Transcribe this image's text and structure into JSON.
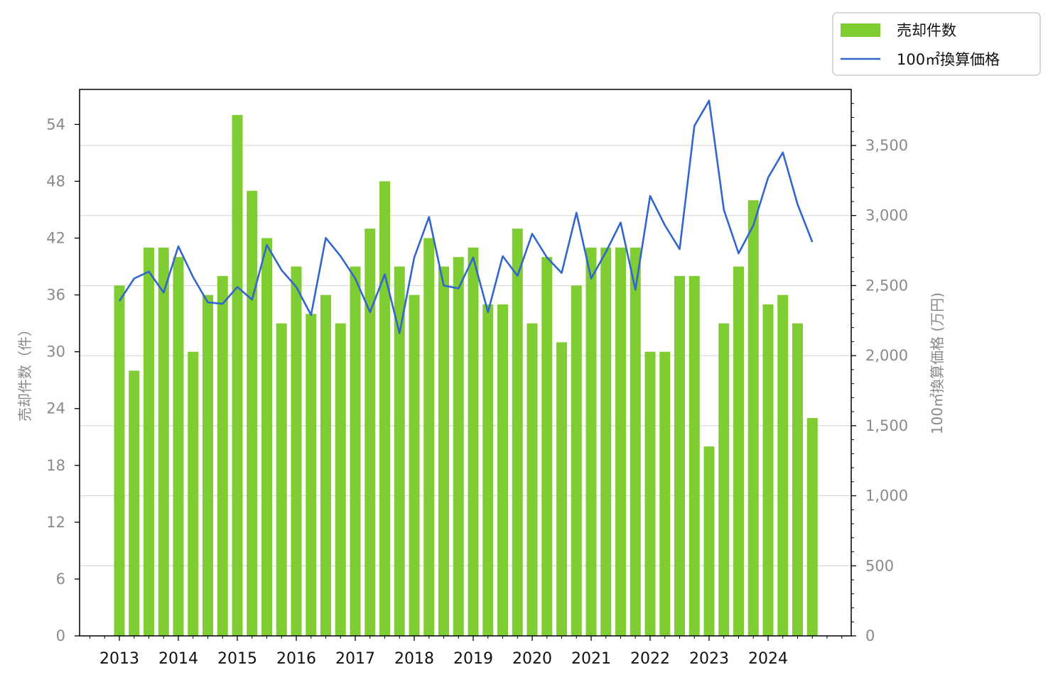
{
  "chart_data": {
    "type": "bar",
    "categories": [
      "2013Q1",
      "2013Q2",
      "2013Q3",
      "2013Q4",
      "2014Q1",
      "2014Q2",
      "2014Q3",
      "2014Q4",
      "2015Q1",
      "2015Q2",
      "2015Q3",
      "2015Q4",
      "2016Q1",
      "2016Q2",
      "2016Q3",
      "2016Q4",
      "2017Q1",
      "2017Q2",
      "2017Q3",
      "2017Q4",
      "2018Q1",
      "2018Q2",
      "2018Q3",
      "2018Q4",
      "2019Q1",
      "2019Q2",
      "2019Q3",
      "2019Q4",
      "2020Q1",
      "2020Q2",
      "2020Q3",
      "2020Q4",
      "2021Q1",
      "2021Q2",
      "2021Q3",
      "2021Q4",
      "2022Q1",
      "2022Q2",
      "2022Q3",
      "2022Q4",
      "2023Q1",
      "2023Q2",
      "2023Q3",
      "2023Q4",
      "2024Q1",
      "2024Q2",
      "2024Q3",
      "2024Q4"
    ],
    "x_tick_labels": [
      "2013",
      "2014",
      "2015",
      "2016",
      "2017",
      "2018",
      "2019",
      "2020",
      "2021",
      "2022",
      "2023",
      "2024"
    ],
    "series": [
      {
        "name": "売却件数",
        "type": "bar",
        "axis": "left",
        "color": "#7fcc33",
        "values": [
          37,
          28,
          41,
          41,
          40,
          30,
          36,
          38,
          55,
          47,
          42,
          33,
          39,
          34,
          36,
          33,
          39,
          43,
          48,
          39,
          36,
          42,
          39,
          40,
          41,
          35,
          35,
          43,
          33,
          40,
          31,
          37,
          41,
          41,
          41,
          41,
          30,
          30,
          38,
          38,
          20,
          33,
          39,
          46,
          35,
          36,
          33,
          23
        ]
      },
      {
        "name": "100㎡換算価格",
        "type": "line",
        "axis": "right",
        "color": "#3366cc",
        "values": [
          2390,
          2550,
          2600,
          2450,
          2780,
          2560,
          2380,
          2370,
          2490,
          2400,
          2790,
          2610,
          2490,
          2290,
          2840,
          2710,
          2550,
          2310,
          2580,
          2160,
          2700,
          2990,
          2500,
          2480,
          2700,
          2310,
          2710,
          2570,
          2870,
          2700,
          2590,
          3020,
          2550,
          2740,
          2950,
          2470,
          3140,
          2930,
          2760,
          3640,
          3820,
          3040,
          2730,
          2930,
          3270,
          3450,
          3080,
          2810
        ]
      }
    ],
    "ylabel": "売却件数（件）",
    "ylabel_right": "100㎡換算価格 (万円)",
    "ylim": [
      0,
      57.7
    ],
    "ylim_right": [
      0,
      3900
    ],
    "y_ticks": [
      "0",
      "6",
      "12",
      "18",
      "24",
      "30",
      "36",
      "42",
      "48",
      "54"
    ],
    "y_ticks_right": [
      "0",
      "500",
      "1,000",
      "1,500",
      "2,000",
      "2,500",
      "3,000",
      "3,500"
    ],
    "grid": "horizontal (right axis)",
    "legend_placement": "top-right, outside plot"
  }
}
